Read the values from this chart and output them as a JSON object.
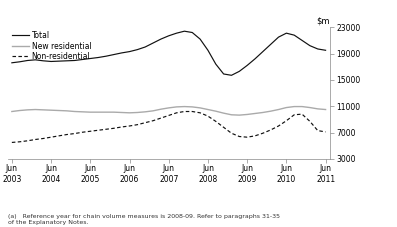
{
  "footnote": "(a)   Reference year for chain volume measures is 2008-09. Refer to paragraphs 31-35\nof the Explanatory Notes.",
  "yticks": [
    3000,
    7000,
    11000,
    15000,
    19000,
    23000
  ],
  "xlabels": [
    "Jun\n2003",
    "Jun\n2004",
    "Jun\n2005",
    "Jun\n2006",
    "Jun\n2007",
    "Jun\n2008",
    "Jun\n2009",
    "Jun\n2010",
    "Jun\n2011"
  ],
  "legend_items": [
    {
      "label": "Total",
      "color": "#111111",
      "linestyle": "solid"
    },
    {
      "label": "New residential",
      "color": "#aaaaaa",
      "linestyle": "solid"
    },
    {
      "label": "Non-residential",
      "color": "#111111",
      "linestyle": "dashed"
    }
  ],
  "total": [
    17600,
    17750,
    17950,
    18050,
    17900,
    17800,
    17850,
    17900,
    17950,
    18100,
    18250,
    18400,
    18600,
    18850,
    19100,
    19300,
    19600,
    20000,
    20600,
    21200,
    21700,
    22100,
    22400,
    22200,
    21200,
    19500,
    17400,
    15900,
    15700,
    16300,
    17200,
    18200,
    19300,
    20400,
    21500,
    22100,
    21800,
    21000,
    20200,
    19700,
    19500
  ],
  "new_residential": [
    10200,
    10350,
    10450,
    10500,
    10450,
    10400,
    10350,
    10300,
    10200,
    10150,
    10100,
    10100,
    10100,
    10100,
    10050,
    10000,
    10050,
    10150,
    10300,
    10550,
    10750,
    10900,
    10950,
    10900,
    10750,
    10500,
    10250,
    9950,
    9700,
    9650,
    9750,
    9900,
    10050,
    10250,
    10500,
    10800,
    10950,
    10950,
    10800,
    10600,
    10500
  ],
  "non_residential": [
    5500,
    5600,
    5750,
    5950,
    6100,
    6300,
    6500,
    6700,
    6850,
    7050,
    7200,
    7350,
    7500,
    7650,
    7850,
    8000,
    8200,
    8500,
    8800,
    9200,
    9600,
    10000,
    10200,
    10200,
    10000,
    9500,
    8700,
    7800,
    6900,
    6400,
    6300,
    6500,
    6900,
    7400,
    8000,
    8800,
    9700,
    9800,
    8700,
    7300,
    7100
  ],
  "n_points": 41,
  "background_color": "#ffffff",
  "line_color_total": "#111111",
  "line_color_res": "#aaaaaa",
  "line_color_nonres": "#111111"
}
